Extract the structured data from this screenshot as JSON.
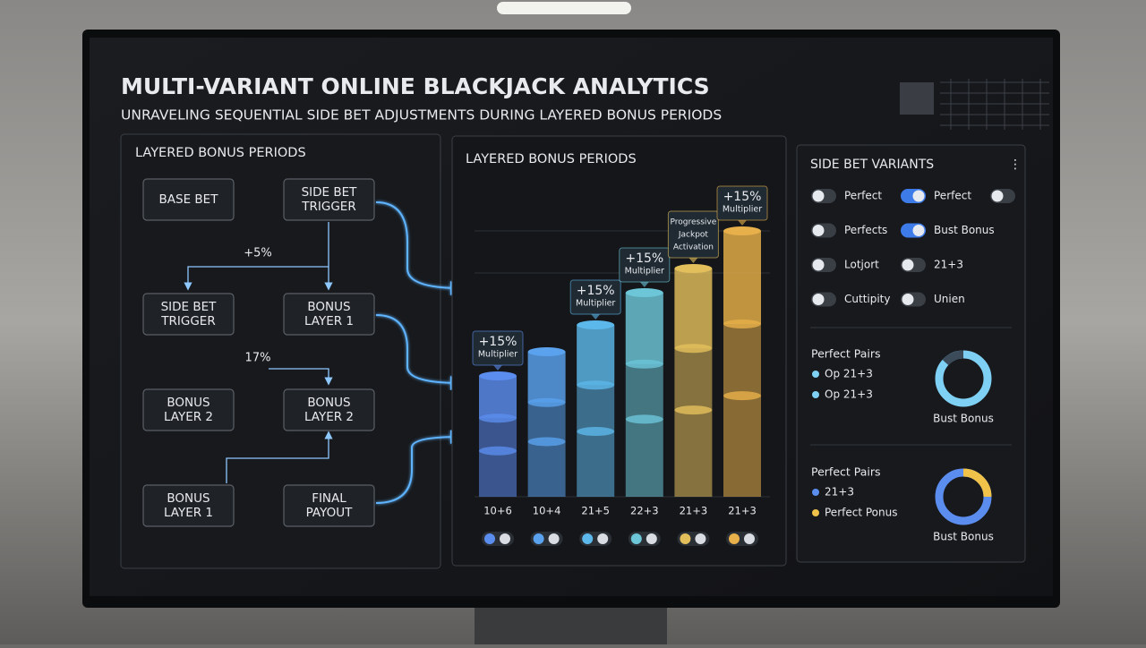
{
  "header": {
    "title": "MULTI-VARIANT ONLINE BLACKJACK ANALYTICS",
    "subtitle": "UNRAVELING SEQUENTIAL SIDE BET ADJUSTMENTS DURING LAYERED BONUS PERIODS"
  },
  "flow": {
    "title": "LAYERED BONUS PERIODS",
    "nodes": [
      {
        "lines": [
          "BASE BET"
        ]
      },
      {
        "lines": [
          "SIDE BET",
          "TRIGGER"
        ]
      },
      {
        "lines": [
          "SIDE BET",
          "TRIGGER"
        ]
      },
      {
        "lines": [
          "BONUS",
          "LAYER 1"
        ]
      },
      {
        "lines": [
          "BONUS",
          "LAYER 2"
        ]
      },
      {
        "lines": [
          "BONUS",
          "LAYER 2"
        ]
      },
      {
        "lines": [
          "BONUS",
          "LAYER 1"
        ]
      },
      {
        "lines": [
          "FINAL",
          "PAYOUT"
        ]
      }
    ],
    "annotations": [
      "+5%",
      "17%"
    ]
  },
  "bars": {
    "title": "LAYERED BONUS PERIODS",
    "items": [
      {
        "label": "10+6",
        "height": 45,
        "color": "#5b8def",
        "callout": [
          "+15%",
          "Multiplier"
        ]
      },
      {
        "label": "10+4",
        "height": 54,
        "color": "#5aa2ee"
      },
      {
        "label": "21+5",
        "height": 64,
        "color": "#5cb8ea",
        "callout": [
          "+15%",
          "Multiplier"
        ]
      },
      {
        "label": "22+3",
        "height": 76,
        "color": "#6cc6d8",
        "callout": [
          "+15%",
          "Multiplier"
        ]
      },
      {
        "label": "21+3",
        "height": 85,
        "color": "#e3bf5c",
        "callout": [
          "Progressive",
          "Jackpot",
          "Activation"
        ]
      },
      {
        "label": "21+3",
        "height": 99,
        "color": "#e8b04a",
        "callout": [
          "+15%",
          "Multiplier"
        ]
      }
    ]
  },
  "variants": {
    "title": "SIDE BET VARIANTS",
    "rows": [
      [
        {
          "label": "Perfect",
          "on": false
        },
        {
          "label": "Perfect",
          "on": true
        },
        {
          "label": null,
          "on": false
        }
      ],
      [
        {
          "label": "Perfects",
          "on": false
        },
        {
          "label": "Bust Bonus",
          "on": true
        }
      ],
      [
        {
          "label": "Lotjort",
          "on": false
        },
        {
          "label": "21+3",
          "on": false
        }
      ],
      [
        {
          "label": "Cuttipity",
          "on": false
        },
        {
          "label": "Unien",
          "on": false
        }
      ]
    ],
    "summaries": [
      {
        "title": "Perfect Pairs",
        "legend": [
          {
            "label": "Op 21+3",
            "color": "#7fd0f5"
          },
          {
            "label": "Op 21+3",
            "color": "#7fd0f5"
          }
        ],
        "donut_label": "Bust Bonus"
      },
      {
        "title": "Perfect Pairs",
        "legend": [
          {
            "label": "21+3",
            "color": "#5b8def"
          },
          {
            "label": "Perfect Ponus",
            "color": "#f0c24a"
          }
        ],
        "donut_label": "Bust Bonus"
      }
    ]
  }
}
